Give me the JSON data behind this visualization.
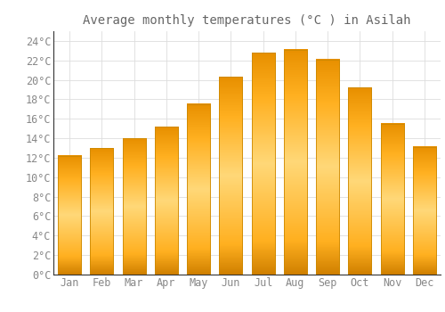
{
  "title": "Average monthly temperatures (°C ) in Asilah",
  "months": [
    "Jan",
    "Feb",
    "Mar",
    "Apr",
    "May",
    "Jun",
    "Jul",
    "Aug",
    "Sep",
    "Oct",
    "Nov",
    "Dec"
  ],
  "values": [
    12.2,
    13.0,
    14.0,
    15.2,
    17.5,
    20.3,
    22.8,
    23.1,
    22.1,
    19.2,
    15.5,
    13.1
  ],
  "bar_color_top": "#FFB300",
  "bar_color_mid": "#FFD060",
  "bar_color_bottom": "#E8900A",
  "bar_edge_color": "#CC8800",
  "background_color": "#FFFFFF",
  "grid_color": "#DDDDDD",
  "text_color": "#888888",
  "title_color": "#666666",
  "ylim": [
    0,
    25
  ],
  "yticks": [
    0,
    2,
    4,
    6,
    8,
    10,
    12,
    14,
    16,
    18,
    20,
    22,
    24
  ],
  "title_fontsize": 10,
  "tick_fontsize": 8.5,
  "font_family": "monospace"
}
